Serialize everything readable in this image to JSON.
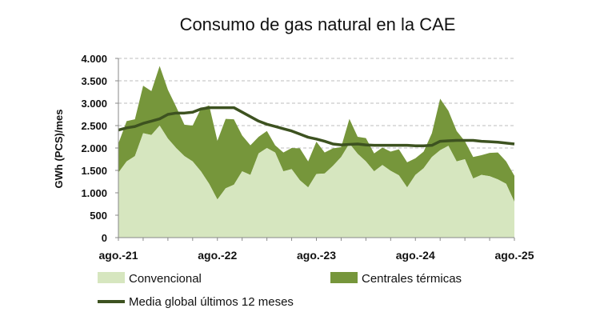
{
  "chart_data": {
    "type": "area",
    "title": "Consumo de gas natural en la CAE",
    "xlabel": "",
    "ylabel": "GWh (PCS)/mes",
    "ylim": [
      0,
      4000
    ],
    "yticks": [
      0,
      500,
      1000,
      1500,
      2000,
      2500,
      3000,
      3500,
      4000
    ],
    "ytick_labels": [
      "0",
      "500",
      "1.000",
      "1.500",
      "2.000",
      "2.500",
      "3.000",
      "3.500",
      "4.000"
    ],
    "x_start": "ago.-21",
    "x_count": 49,
    "xtick_labels": [
      {
        "index": 0,
        "label": "ago.-21"
      },
      {
        "index": 12,
        "label": "ago.-22"
      },
      {
        "index": 24,
        "label": "ago.-23"
      },
      {
        "index": 36,
        "label": "ago.-24"
      },
      {
        "index": 48,
        "label": "ago.-25"
      }
    ],
    "series": [
      {
        "name": "Convencional",
        "kind": "stacked-area",
        "color": "#d6e6bf",
        "values": [
          1450,
          1700,
          1820,
          2330,
          2290,
          2500,
          2210,
          2000,
          1820,
          1700,
          1480,
          1200,
          850,
          1100,
          1180,
          1480,
          1400,
          1880,
          2000,
          1900,
          1480,
          1530,
          1280,
          1120,
          1420,
          1430,
          1600,
          1800,
          2100,
          1870,
          1700,
          1480,
          1620,
          1490,
          1390,
          1120,
          1400,
          1550,
          1800,
          1950,
          2050,
          1700,
          1750,
          1320,
          1400,
          1370,
          1300,
          1200,
          800
        ]
      },
      {
        "name": "Centrales térmicas",
        "kind": "stacked-area",
        "color": "#76963b",
        "values": [
          650,
          900,
          820,
          1060,
          980,
          1330,
          1090,
          920,
          700,
          800,
          1400,
          1750,
          1310,
          1550,
          1460,
          800,
          660,
          370,
          380,
          160,
          420,
          470,
          710,
          580,
          720,
          470,
          390,
          220,
          550,
          380,
          520,
          400,
          390,
          430,
          580,
          560,
          370,
          370,
          530,
          1150,
          780,
          680,
          400,
          480,
          440,
          520,
          600,
          500,
          580
        ]
      },
      {
        "name": "Media global últimos 12 meses",
        "kind": "line",
        "color": "#3d5220",
        "values": [
          2400,
          2450,
          2480,
          2550,
          2600,
          2650,
          2750,
          2780,
          2780,
          2800,
          2870,
          2900,
          2900,
          2900,
          2900,
          2800,
          2700,
          2600,
          2530,
          2480,
          2430,
          2380,
          2310,
          2240,
          2200,
          2150,
          2090,
          2070,
          2080,
          2090,
          2070,
          2060,
          2060,
          2060,
          2060,
          2060,
          2050,
          2050,
          2060,
          2150,
          2160,
          2170,
          2170,
          2170,
          2150,
          2140,
          2130,
          2110,
          2090
        ]
      }
    ],
    "legend": {
      "placement": "bottom",
      "entries": [
        "Convencional",
        "Centrales térmicas",
        "Media global últimos 12 meses"
      ]
    }
  }
}
